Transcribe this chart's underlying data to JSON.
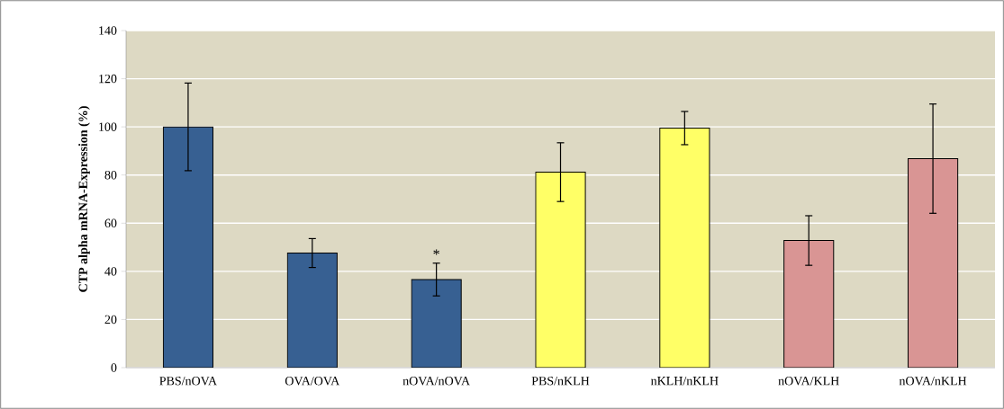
{
  "chart_data": {
    "type": "bar",
    "ylabel": "CTP alpha mRNA-Expression (%)",
    "categories": [
      "PBS/nOVA",
      "OVA/OVA",
      "nOVA/nOVA",
      "PBS/nKLH",
      "nKLH/nKLH",
      "nOVA/KLH",
      "nOVA/nKLH"
    ],
    "values": [
      100,
      47.6,
      36.6,
      81.2,
      99.5,
      52.8,
      86.8
    ],
    "errors": [
      18.2,
      6.0,
      6.8,
      12.2,
      6.9,
      10.3,
      22.7
    ],
    "colors": [
      "#376092",
      "#376092",
      "#376092",
      "#ffff66",
      "#ffff66",
      "#d99594",
      "#d99594"
    ],
    "ylim": [
      0,
      140
    ],
    "yticks": [
      0,
      20,
      40,
      60,
      80,
      100,
      120,
      140
    ],
    "grid": "y",
    "annotations": [
      {
        "text": "*",
        "x": "nOVA/nOVA",
        "y": 43.4
      }
    ]
  }
}
